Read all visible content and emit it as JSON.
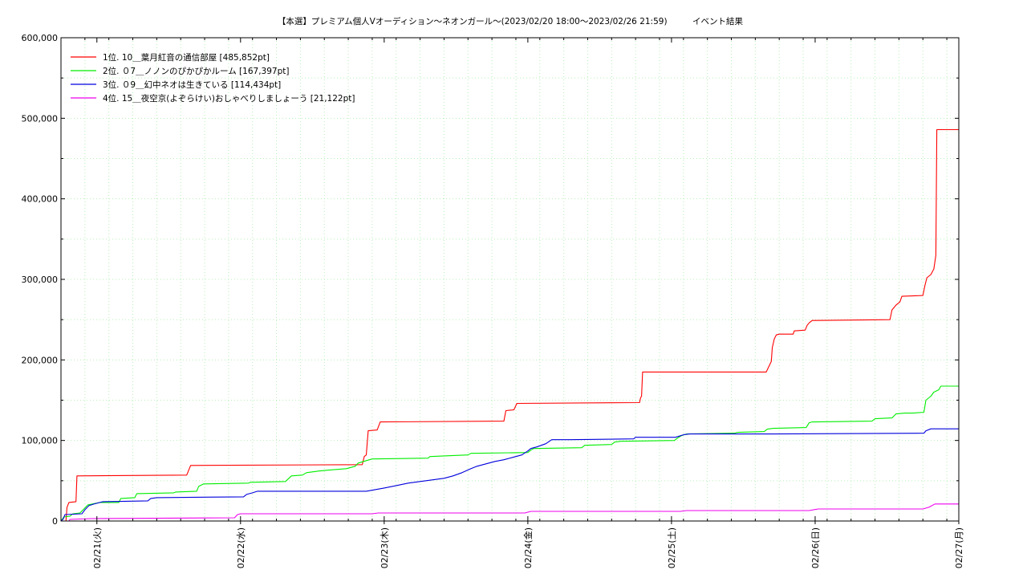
{
  "chart_data": {
    "type": "line",
    "title": "【本選】プレミアム個人Vオーディション〜ネオンガール〜(2023/02/20 18:00〜2023/02/26 21:59)　　　イベント結果",
    "xlabel": "",
    "ylabel": "",
    "ylim": [
      0,
      600000
    ],
    "xlim": [
      "2023/02/20 18:00",
      "2023/02/27 00:00"
    ],
    "yticks": [
      "0",
      "100,000",
      "200,000",
      "300,000",
      "400,000",
      "500,000",
      "600,000"
    ],
    "xticks": [
      {
        "t": "2023/02/21 00:00",
        "label": "02/21(火)"
      },
      {
        "t": "2023/02/22 00:00",
        "label": "02/22(水)"
      },
      {
        "t": "2023/02/23 00:00",
        "label": "02/23(木)"
      },
      {
        "t": "2023/02/24 00:00",
        "label": "02/24(金)"
      },
      {
        "t": "2023/02/25 00:00",
        "label": "02/25(土)"
      },
      {
        "t": "2023/02/26 00:00",
        "label": "02/26(日)"
      },
      {
        "t": "2023/02/27 00:00",
        "label": "02/27(月)"
      }
    ],
    "grid": true,
    "legend_position": "top-left",
    "series": [
      {
        "name": "1位. 10＿葉月紅音の通信部屋 [485,852pt]",
        "color": "#ff0000",
        "points": [
          [
            "2023/02/20 18:50",
            0
          ],
          [
            "2023/02/20 19:00",
            17000
          ],
          [
            "2023/02/20 19:20",
            23000
          ],
          [
            "2023/02/20 20:30",
            24000
          ],
          [
            "2023/02/20 20:40",
            56000
          ],
          [
            "2023/02/21 15:00",
            57000
          ],
          [
            "2023/02/21 15:40",
            69000
          ],
          [
            "2023/02/22 20:20",
            70000
          ],
          [
            "2023/02/22 20:40",
            80000
          ],
          [
            "2023/02/22 21:00",
            82000
          ],
          [
            "2023/02/22 21:20",
            112000
          ],
          [
            "2023/02/22 22:50",
            113000
          ],
          [
            "2023/02/22 23:20",
            123000
          ],
          [
            "2023/02/23 20:00",
            124000
          ],
          [
            "2023/02/23 20:20",
            137000
          ],
          [
            "2023/02/23 21:40",
            138000
          ],
          [
            "2023/02/23 22:10",
            146000
          ],
          [
            "2023/02/24 18:40",
            147000
          ],
          [
            "2023/02/24 18:50",
            153000
          ],
          [
            "2023/02/24 19:00",
            155000
          ],
          [
            "2023/02/24 19:10",
            185000
          ],
          [
            "2023/02/25 15:50",
            185000
          ],
          [
            "2023/02/25 16:20",
            193000
          ],
          [
            "2023/02/25 16:40",
            198000
          ],
          [
            "2023/02/25 16:50",
            215000
          ],
          [
            "2023/02/25 17:10",
            226000
          ],
          [
            "2023/02/25 17:30",
            231000
          ],
          [
            "2023/02/25 18:00",
            232000
          ],
          [
            "2023/02/25 20:20",
            232000
          ],
          [
            "2023/02/25 20:30",
            236000
          ],
          [
            "2023/02/25 22:20",
            237000
          ],
          [
            "2023/02/25 22:40",
            243000
          ],
          [
            "2023/02/25 23:00",
            246000
          ],
          [
            "2023/02/25 23:30",
            249000
          ],
          [
            "2023/02/26 12:30",
            250000
          ],
          [
            "2023/02/26 12:50",
            262000
          ],
          [
            "2023/02/26 13:30",
            268000
          ],
          [
            "2023/02/26 14:10",
            272000
          ],
          [
            "2023/02/26 14:30",
            279000
          ],
          [
            "2023/02/26 18:00",
            280000
          ],
          [
            "2023/02/26 18:20",
            292000
          ],
          [
            "2023/02/26 18:40",
            302000
          ],
          [
            "2023/02/26 19:20",
            306000
          ],
          [
            "2023/02/26 19:50",
            313000
          ],
          [
            "2023/02/26 20:10",
            330000
          ],
          [
            "2023/02/26 20:20",
            485852
          ],
          [
            "2023/02/26 23:59",
            485852
          ]
        ]
      },
      {
        "name": "2位. ０7＿ノノンのぴかぴかルーム [167,397pt]",
        "color": "#00ee00",
        "points": [
          [
            "2023/02/20 18:00",
            0
          ],
          [
            "2023/02/20 18:30",
            5000
          ],
          [
            "2023/02/20 19:30",
            6000
          ],
          [
            "2023/02/20 20:00",
            9000
          ],
          [
            "2023/02/20 21:10",
            10000
          ],
          [
            "2023/02/20 21:50",
            15000
          ],
          [
            "2023/02/20 22:30",
            20000
          ],
          [
            "2023/02/21 00:30",
            23000
          ],
          [
            "2023/02/21 03:40",
            23000
          ],
          [
            "2023/02/21 04:00",
            28000
          ],
          [
            "2023/02/21 06:20",
            29000
          ],
          [
            "2023/02/21 06:40",
            34000
          ],
          [
            "2023/02/21 12:50",
            35000
          ],
          [
            "2023/02/21 13:10",
            36000
          ],
          [
            "2023/02/21 16:40",
            37000
          ],
          [
            "2023/02/21 17:00",
            43000
          ],
          [
            "2023/02/21 17:50",
            46000
          ],
          [
            "2023/02/22 01:20",
            47000
          ],
          [
            "2023/02/22 01:40",
            48000
          ],
          [
            "2023/02/22 07:30",
            49000
          ],
          [
            "2023/02/22 08:30",
            56000
          ],
          [
            "2023/02/22 10:20",
            57000
          ],
          [
            "2023/02/22 11:00",
            60000
          ],
          [
            "2023/02/22 13:00",
            62000
          ],
          [
            "2023/02/22 14:20",
            63000
          ],
          [
            "2023/02/22 17:40",
            65000
          ],
          [
            "2023/02/22 19:10",
            68000
          ],
          [
            "2023/02/22 19:40",
            72000
          ],
          [
            "2023/02/22 21:00",
            75000
          ],
          [
            "2023/02/22 22:00",
            77000
          ],
          [
            "2023/02/23 07:20",
            78000
          ],
          [
            "2023/02/23 07:40",
            80000
          ],
          [
            "2023/02/23 14:00",
            82000
          ],
          [
            "2023/02/23 14:30",
            84000
          ],
          [
            "2023/02/24 00:00",
            85000
          ],
          [
            "2023/02/24 00:30",
            88000
          ],
          [
            "2023/02/24 01:00",
            90000
          ],
          [
            "2023/02/24 09:00",
            91000
          ],
          [
            "2023/02/24 09:30",
            94000
          ],
          [
            "2023/02/24 14:00",
            95000
          ],
          [
            "2023/02/24 14:30",
            98000
          ],
          [
            "2023/02/24 15:30",
            99000
          ],
          [
            "2023/02/25 00:30",
            100000
          ],
          [
            "2023/02/25 01:00",
            103000
          ],
          [
            "2023/02/25 01:40",
            106000
          ],
          [
            "2023/02/25 02:30",
            108000
          ],
          [
            "2023/02/25 10:30",
            109000
          ],
          [
            "2023/02/25 11:00",
            110000
          ],
          [
            "2023/02/25 15:30",
            111000
          ],
          [
            "2023/02/25 16:00",
            114000
          ],
          [
            "2023/02/25 17:00",
            115000
          ],
          [
            "2023/02/25 22:30",
            116000
          ],
          [
            "2023/02/25 23:00",
            122000
          ],
          [
            "2023/02/25 23:30",
            123000
          ],
          [
            "2023/02/26 09:30",
            124000
          ],
          [
            "2023/02/26 10:00",
            127000
          ],
          [
            "2023/02/26 12:50",
            128000
          ],
          [
            "2023/02/26 13:30",
            133000
          ],
          [
            "2023/02/26 15:00",
            134000
          ],
          [
            "2023/02/26 16:20",
            134000
          ],
          [
            "2023/02/26 18:10",
            135000
          ],
          [
            "2023/02/26 18:30",
            150000
          ],
          [
            "2023/02/26 19:20",
            155000
          ],
          [
            "2023/02/26 19:50",
            160000
          ],
          [
            "2023/02/26 20:40",
            163000
          ],
          [
            "2023/02/26 21:00",
            167397
          ],
          [
            "2023/02/26 23:59",
            167397
          ]
        ]
      },
      {
        "name": "3位. ０9＿幻中ネオは生きている [114,434pt]",
        "color": "#0000dd",
        "points": [
          [
            "2023/02/20 18:00",
            0
          ],
          [
            "2023/02/20 18:20",
            2000
          ],
          [
            "2023/02/20 18:40",
            8000
          ],
          [
            "2023/02/20 21:30",
            9000
          ],
          [
            "2023/02/20 22:00",
            14000
          ],
          [
            "2023/02/20 22:40",
            19000
          ],
          [
            "2023/02/20 23:30",
            21000
          ],
          [
            "2023/02/21 01:00",
            24000
          ],
          [
            "2023/02/21 08:30",
            25000
          ],
          [
            "2023/02/21 09:00",
            28000
          ],
          [
            "2023/02/21 10:00",
            29000
          ],
          [
            "2023/02/22 00:30",
            30000
          ],
          [
            "2023/02/22 01:00",
            33000
          ],
          [
            "2023/02/22 02:00",
            35000
          ],
          [
            "2023/02/22 02:50",
            37000
          ],
          [
            "2023/02/22 21:00",
            37000
          ],
          [
            "2023/02/23 00:00",
            41000
          ],
          [
            "2023/02/23 02:00",
            44000
          ],
          [
            "2023/02/23 04:00",
            47000
          ],
          [
            "2023/02/23 06:00",
            49000
          ],
          [
            "2023/02/23 08:00",
            51000
          ],
          [
            "2023/02/23 10:00",
            53000
          ],
          [
            "2023/02/23 11:30",
            56000
          ],
          [
            "2023/02/23 13:00",
            60000
          ],
          [
            "2023/02/23 14:30",
            65000
          ],
          [
            "2023/02/23 15:30",
            68000
          ],
          [
            "2023/02/23 17:00",
            71000
          ],
          [
            "2023/02/23 18:30",
            74000
          ],
          [
            "2023/02/23 20:00",
            76000
          ],
          [
            "2023/02/23 21:30",
            79000
          ],
          [
            "2023/02/23 23:00",
            82000
          ],
          [
            "2023/02/24 00:00",
            87000
          ],
          [
            "2023/02/24 00:30",
            90000
          ],
          [
            "2023/02/24 01:30",
            92000
          ],
          [
            "2023/02/24 03:00",
            96000
          ],
          [
            "2023/02/24 04:00",
            101000
          ],
          [
            "2023/02/24 07:00",
            101000
          ],
          [
            "2023/02/24 17:40",
            102000
          ],
          [
            "2023/02/24 18:00",
            104000
          ],
          [
            "2023/02/25 00:40",
            104000
          ],
          [
            "2023/02/25 02:00",
            107000
          ],
          [
            "2023/02/25 03:00",
            108000
          ],
          [
            "2023/02/25 17:00",
            108000
          ],
          [
            "2023/02/26 18:10",
            109000
          ],
          [
            "2023/02/26 18:30",
            112000
          ],
          [
            "2023/02/26 19:20",
            114434
          ],
          [
            "2023/02/26 23:59",
            114434
          ]
        ]
      },
      {
        "name": "4位. 15＿夜空京(よぞらけい)おしゃべりしましょーう [21,122pt]",
        "color": "#ee00ee",
        "points": [
          [
            "2023/02/20 19:20",
            0
          ],
          [
            "2023/02/20 19:30",
            2000
          ],
          [
            "2023/02/20 23:00",
            3000
          ],
          [
            "2023/02/21 23:00",
            4000
          ],
          [
            "2023/02/21 23:30",
            8000
          ],
          [
            "2023/02/22 00:00",
            9000
          ],
          [
            "2023/02/22 22:00",
            9000
          ],
          [
            "2023/02/22 23:00",
            10000
          ],
          [
            "2023/02/23 23:30",
            10000
          ],
          [
            "2023/02/24 00:30",
            12000
          ],
          [
            "2023/02/25 01:30",
            12000
          ],
          [
            "2023/02/25 02:30",
            13000
          ],
          [
            "2023/02/25 23:00",
            13000
          ],
          [
            "2023/02/26 00:30",
            15000
          ],
          [
            "2023/02/26 18:00",
            15000
          ],
          [
            "2023/02/26 19:00",
            17000
          ],
          [
            "2023/02/26 20:00",
            21122
          ],
          [
            "2023/02/26 23:59",
            21122
          ]
        ]
      }
    ]
  }
}
